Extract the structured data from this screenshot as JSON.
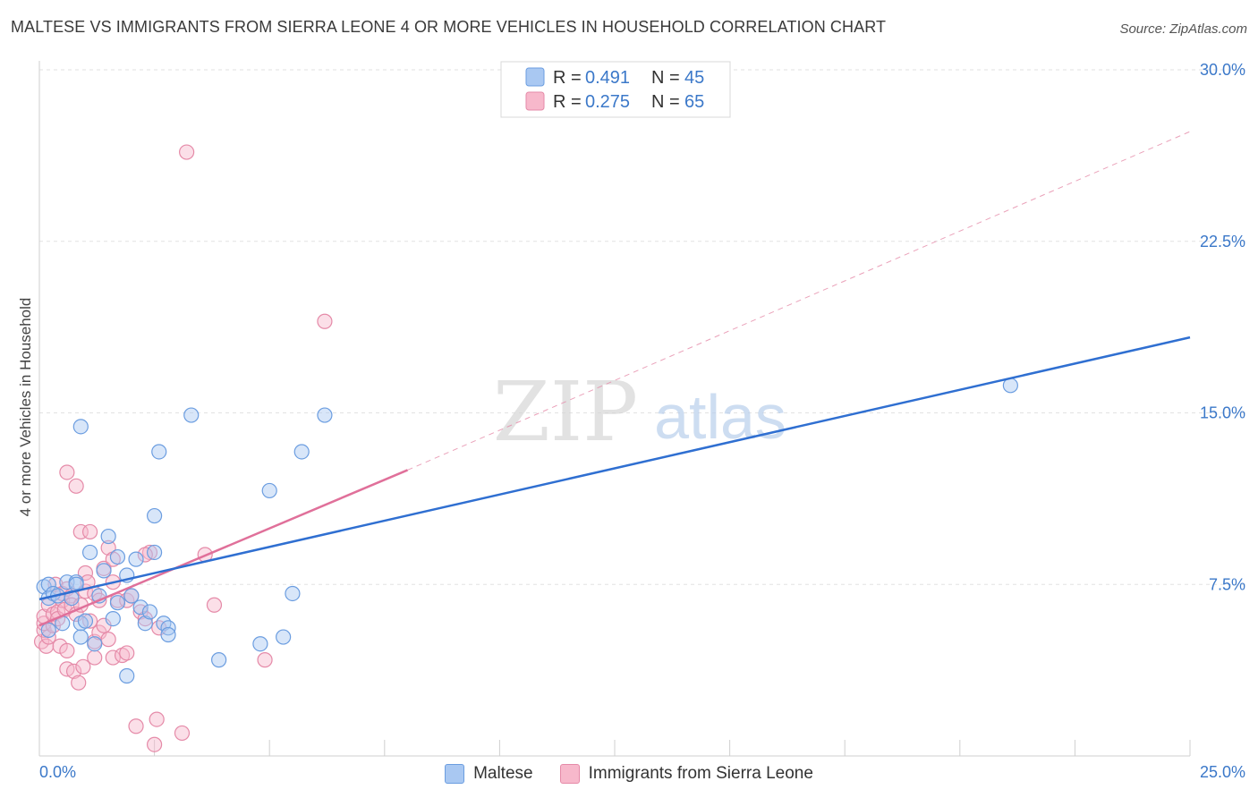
{
  "header": {
    "title": "MALTESE VS IMMIGRANTS FROM SIERRA LEONE 4 OR MORE VEHICLES IN HOUSEHOLD CORRELATION CHART",
    "source": "Source: ZipAtlas.com"
  },
  "watermark": {
    "zip": "ZIP",
    "atlas": "atlas"
  },
  "legend": {
    "r_label": "R =",
    "n_label": "N =",
    "rows": [
      {
        "r": "0.491",
        "n": "45"
      },
      {
        "r": "0.275",
        "n": "65"
      }
    ]
  },
  "colors": {
    "maltese_fill": "#a9c8f2",
    "maltese_stroke": "#6b9de0",
    "maltese_line": "#2f6fd1",
    "sl_fill": "#f7b8cb",
    "sl_stroke": "#e58aa8",
    "sl_line": "#e0709a",
    "tick_text": "#3b78c9"
  },
  "chart_data": {
    "type": "scatter",
    "title": "MALTESE VS IMMIGRANTS FROM SIERRA LEONE 4 OR MORE VEHICLES IN HOUSEHOLD CORRELATION CHART",
    "xlabel": "",
    "ylabel": "4 or more Vehicles in Household",
    "xlim": [
      0,
      25
    ],
    "ylim": [
      0,
      30
    ],
    "x_tick_labels": [
      "0.0%",
      "25.0%"
    ],
    "y_ticks": [
      7.5,
      15.0,
      22.5,
      30.0
    ],
    "y_tick_labels": [
      "7.5%",
      "15.0%",
      "22.5%",
      "30.0%"
    ],
    "grid": true,
    "legend_position": "top-center",
    "series": [
      {
        "name": "Maltese",
        "r": 0.491,
        "n": 45,
        "trend": {
          "x": [
            0.0,
            25.0
          ],
          "y": [
            6.85,
            18.3
          ]
        },
        "points": [
          [
            0.1,
            7.4
          ],
          [
            0.2,
            7.5
          ],
          [
            0.2,
            6.9
          ],
          [
            0.2,
            5.5
          ],
          [
            0.3,
            7.1
          ],
          [
            0.4,
            7.0
          ],
          [
            0.5,
            5.8
          ],
          [
            0.6,
            7.6
          ],
          [
            0.7,
            6.9
          ],
          [
            0.8,
            7.6
          ],
          [
            0.9,
            5.8
          ],
          [
            0.9,
            14.4
          ],
          [
            0.9,
            5.2
          ],
          [
            1.0,
            5.9
          ],
          [
            1.1,
            8.9
          ],
          [
            1.2,
            4.9
          ],
          [
            1.3,
            7.0
          ],
          [
            1.4,
            8.1
          ],
          [
            1.5,
            9.6
          ],
          [
            1.6,
            6.0
          ],
          [
            1.7,
            6.7
          ],
          [
            1.7,
            8.7
          ],
          [
            1.9,
            7.9
          ],
          [
            1.9,
            3.5
          ],
          [
            2.0,
            7.0
          ],
          [
            2.1,
            8.6
          ],
          [
            2.2,
            6.5
          ],
          [
            2.3,
            5.8
          ],
          [
            2.4,
            6.3
          ],
          [
            2.5,
            8.9
          ],
          [
            2.5,
            10.5
          ],
          [
            2.6,
            13.3
          ],
          [
            2.7,
            5.8
          ],
          [
            2.8,
            5.6
          ],
          [
            2.8,
            5.3
          ],
          [
            3.3,
            14.9
          ],
          [
            3.9,
            4.2
          ],
          [
            4.8,
            4.9
          ],
          [
            5.0,
            11.6
          ],
          [
            5.3,
            5.2
          ],
          [
            5.5,
            7.1
          ],
          [
            5.7,
            13.3
          ],
          [
            6.2,
            14.9
          ],
          [
            21.1,
            16.2
          ],
          [
            0.8,
            7.5
          ]
        ]
      },
      {
        "name": "Immigrants from Sierra Leone",
        "r": 0.275,
        "n": 65,
        "trend": {
          "x": [
            0.0,
            8.0
          ],
          "y": [
            5.7,
            12.5
          ]
        },
        "trend_extension": {
          "x": [
            8.0,
            25.0
          ],
          "y": [
            12.5,
            27.3
          ]
        },
        "points": [
          [
            0.05,
            5.0
          ],
          [
            0.1,
            5.5
          ],
          [
            0.1,
            5.8
          ],
          [
            0.1,
            6.1
          ],
          [
            0.15,
            4.8
          ],
          [
            0.2,
            5.2
          ],
          [
            0.2,
            6.6
          ],
          [
            0.3,
            5.7
          ],
          [
            0.3,
            6.2
          ],
          [
            0.35,
            7.5
          ],
          [
            0.4,
            6.3
          ],
          [
            0.4,
            6.0
          ],
          [
            0.45,
            4.8
          ],
          [
            0.5,
            6.8
          ],
          [
            0.5,
            7.1
          ],
          [
            0.55,
            6.4
          ],
          [
            0.6,
            7.3
          ],
          [
            0.6,
            3.8
          ],
          [
            0.6,
            4.6
          ],
          [
            0.7,
            7.0
          ],
          [
            0.7,
            6.6
          ],
          [
            0.6,
            12.4
          ],
          [
            0.8,
            6.2
          ],
          [
            0.75,
            3.7
          ],
          [
            0.8,
            11.8
          ],
          [
            0.85,
            3.2
          ],
          [
            0.9,
            6.6
          ],
          [
            0.9,
            9.8
          ],
          [
            0.95,
            3.9
          ],
          [
            1.0,
            7.2
          ],
          [
            1.0,
            8.0
          ],
          [
            1.05,
            7.6
          ],
          [
            1.1,
            5.9
          ],
          [
            1.1,
            9.8
          ],
          [
            1.2,
            7.1
          ],
          [
            1.2,
            5.0
          ],
          [
            1.2,
            4.3
          ],
          [
            1.3,
            6.8
          ],
          [
            1.3,
            5.4
          ],
          [
            1.4,
            8.2
          ],
          [
            1.4,
            5.7
          ],
          [
            1.5,
            9.1
          ],
          [
            1.5,
            5.1
          ],
          [
            1.6,
            4.3
          ],
          [
            1.6,
            7.6
          ],
          [
            1.6,
            8.6
          ],
          [
            1.7,
            6.8
          ],
          [
            1.8,
            4.4
          ],
          [
            1.9,
            6.8
          ],
          [
            1.9,
            4.5
          ],
          [
            2.0,
            7.0
          ],
          [
            2.1,
            1.3
          ],
          [
            2.2,
            6.3
          ],
          [
            2.3,
            6.0
          ],
          [
            2.4,
            8.9
          ],
          [
            2.5,
            0.5
          ],
          [
            2.55,
            1.6
          ],
          [
            2.6,
            5.6
          ],
          [
            3.1,
            1.0
          ],
          [
            3.2,
            26.4
          ],
          [
            3.6,
            8.8
          ],
          [
            3.8,
            6.6
          ],
          [
            4.9,
            4.2
          ],
          [
            6.2,
            19.0
          ],
          [
            2.3,
            8.8
          ]
        ]
      }
    ]
  }
}
